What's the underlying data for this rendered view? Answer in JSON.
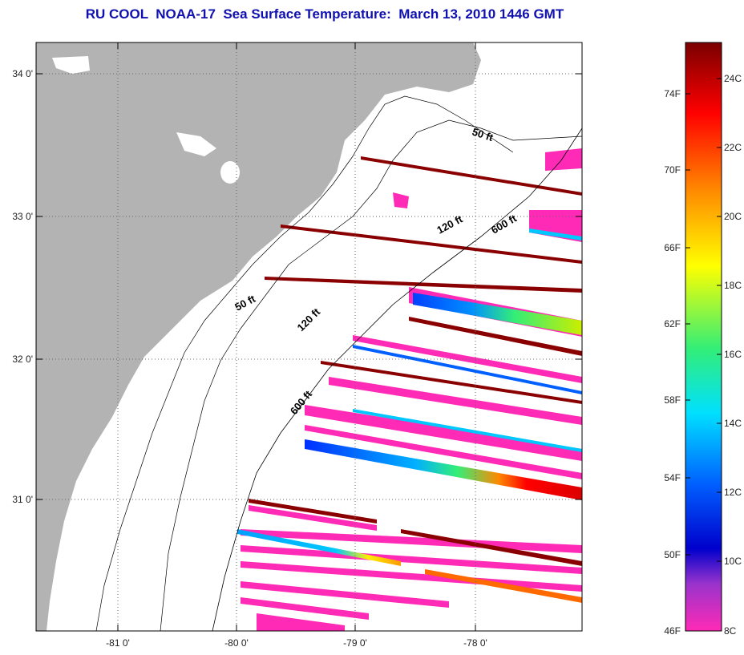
{
  "title": "RU COOL  NOAA-17  Sea Surface Temperature:  March 13, 2010 1446 GMT",
  "map": {
    "lon_ticks": [
      "-81 0'",
      "-80 0'",
      "-79 0'",
      "-78 0'"
    ],
    "lat_ticks": [
      "34 0'",
      "33 0'",
      "32 0'",
      "31 0'"
    ],
    "contour_labels": [
      "50 ft",
      "120 ft",
      "600 ft",
      "50 ft",
      "120 ft",
      "600 ft"
    ],
    "land_color": "#b3b3b3"
  },
  "colorbar": {
    "fahrenheit_ticks": [
      "74F",
      "70F",
      "66F",
      "62F",
      "58F",
      "54F",
      "50F",
      "46F"
    ],
    "celsius_ticks": [
      "24C",
      "22C",
      "20C",
      "18C",
      "16C",
      "14C",
      "12C",
      "10C",
      "8C"
    ],
    "colors": [
      "#7a0000",
      "#ff0000",
      "#ff8800",
      "#ffff00",
      "#33ee77",
      "#00e0ff",
      "#0060ff",
      "#0000cc",
      "#9933cc",
      "#ff2ab5"
    ]
  }
}
